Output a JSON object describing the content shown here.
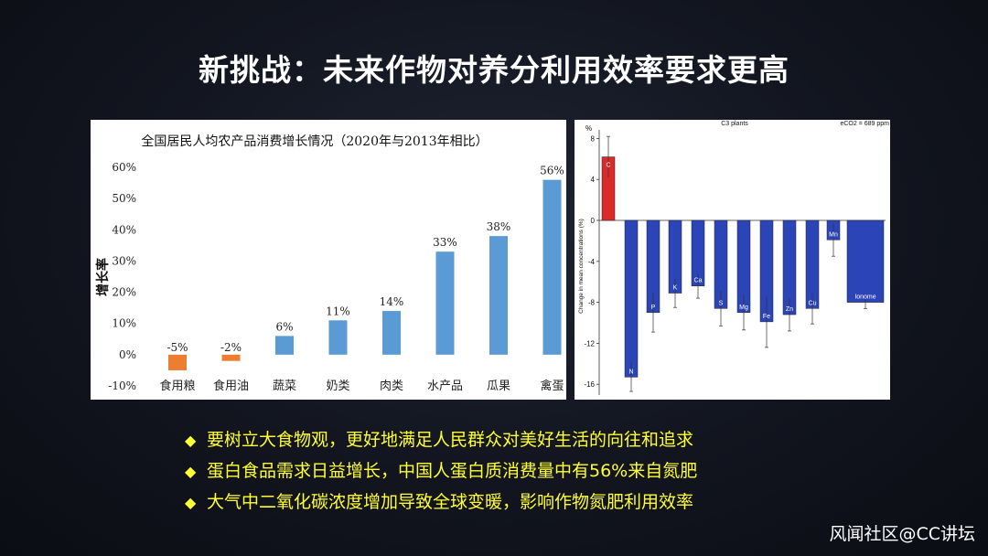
{
  "slide_title": "新挑战：未来作物对养分利用效率要求更高",
  "watermark": "风闻社区@CC讲坛",
  "bullets": [
    "要树立大食物观，更好地满足人民群众对美好生活的向往和追求",
    "蛋白食品需求日益增长，中国人蛋白质消费量中有56%来自氮肥",
    "大气中二氧化碳浓度增加导致全球变暖，影响作物氮肥利用效率"
  ],
  "colors": {
    "accent_yellow": "#ffff33",
    "bar_blue": "#5b9bd5",
    "bar_orange": "#ed7d31",
    "c3_red": "#d92b2b",
    "c3_blue": "#2b44b8"
  },
  "chart_data": [
    {
      "type": "bar",
      "title": "全国居民人均农产品消费增长情况（2020年与2013年相比）",
      "ylabel": "增长率",
      "xlabel": "",
      "categories": [
        "食用粮",
        "食用油",
        "蔬菜",
        "奶类",
        "肉类",
        "水产品",
        "瓜果",
        "禽蛋"
      ],
      "values": [
        -5,
        -2,
        6,
        11,
        14,
        33,
        38,
        56
      ],
      "data_labels": [
        "-5%",
        "-2%",
        "6%",
        "11%",
        "14%",
        "33%",
        "38%",
        "56%"
      ],
      "yticks": [
        "60%",
        "50%",
        "40%",
        "30%",
        "20%",
        "10%",
        "0%",
        "-10%"
      ],
      "ylim": [
        -10,
        60
      ],
      "grid": false
    },
    {
      "type": "bar",
      "title": "C3 plants",
      "annotation": "eCO2 = 689 ppm",
      "ylabel": "Change in mean concentrations (%)",
      "y_unit": "%",
      "categories": [
        "C",
        "N",
        "P",
        "K",
        "Ca",
        "S",
        "Mg",
        "Fe",
        "Zn",
        "Cu",
        "Mn",
        "Ionome"
      ],
      "values": [
        6.2,
        -15.3,
        -9.0,
        -7.1,
        -6.4,
        -8.6,
        -9.0,
        -9.9,
        -9.2,
        -8.6,
        -1.9,
        -8.0
      ],
      "errors": [
        2.0,
        1.4,
        1.9,
        1.4,
        1.2,
        1.7,
        1.7,
        2.5,
        1.6,
        1.5,
        1.6,
        0.6
      ],
      "yticks": [
        "8",
        "4",
        "0",
        "-4",
        "-8",
        "-12",
        "-16"
      ],
      "ylim": [
        -17,
        9
      ],
      "grid": false
    }
  ]
}
